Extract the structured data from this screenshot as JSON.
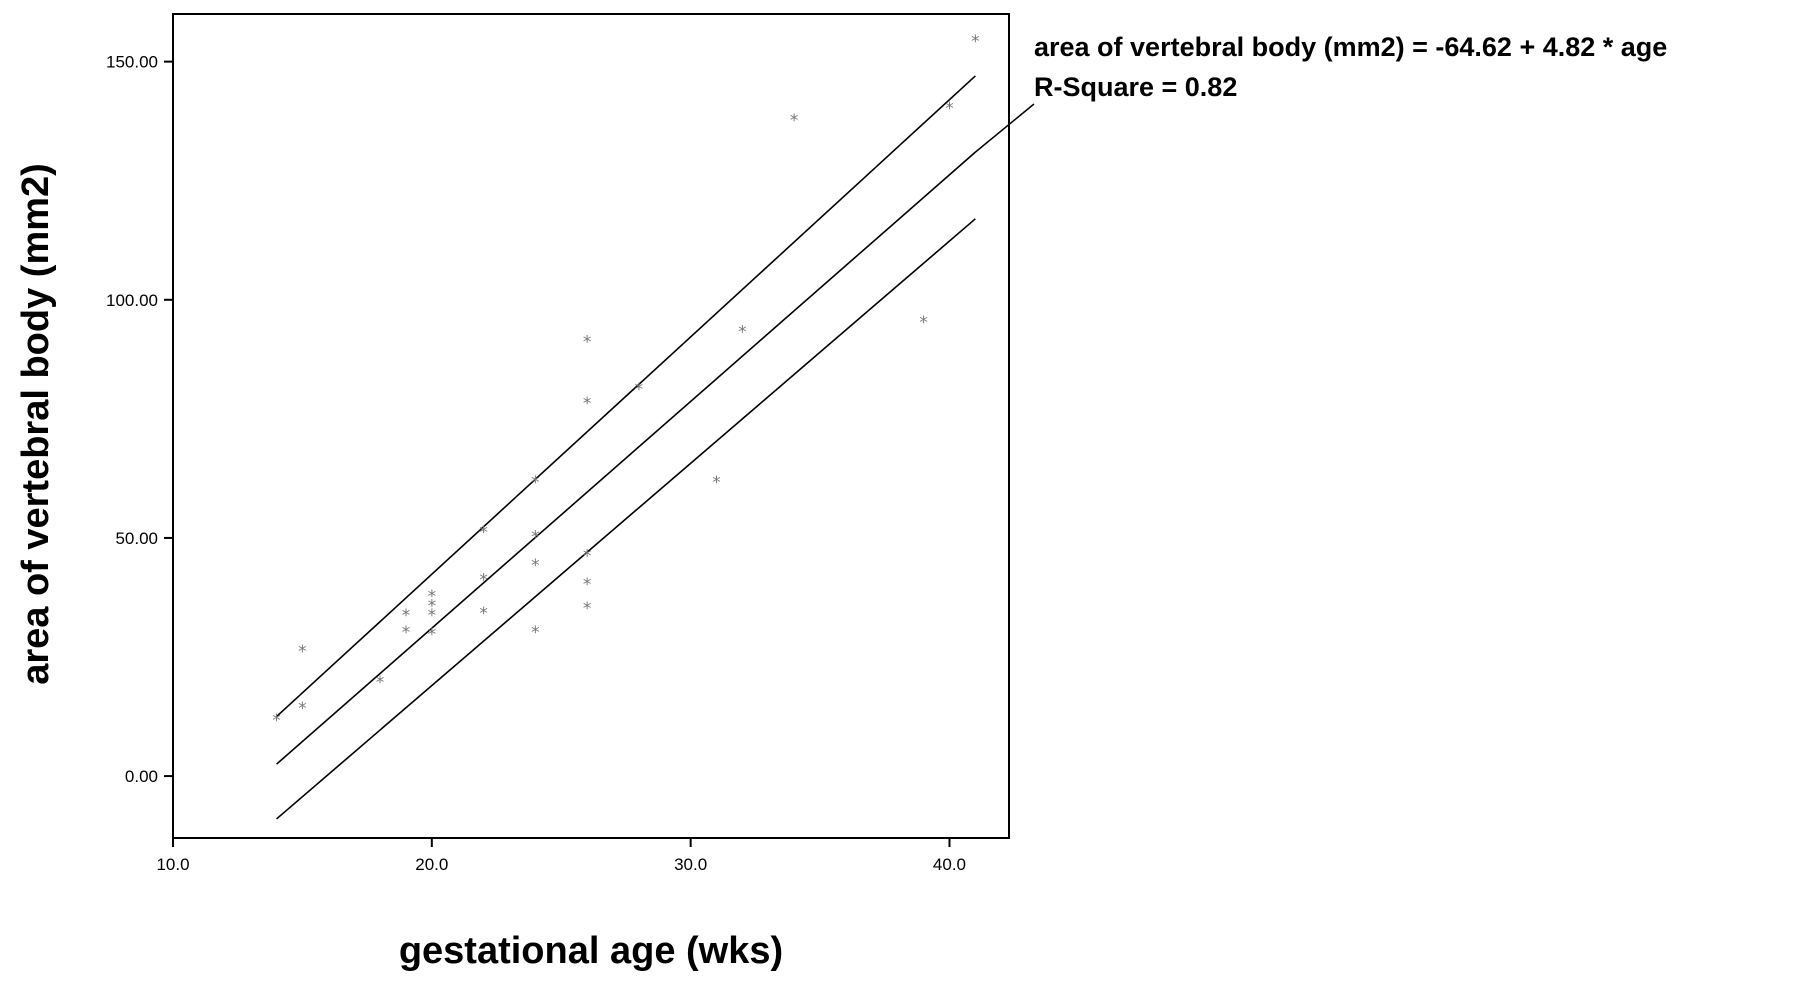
{
  "chart_data": {
    "type": "scatter",
    "xlabel": "gestational age (wks)",
    "ylabel": "area of vertebral body (mm2)",
    "xlim": [
      10,
      42.3
    ],
    "ylim": [
      -13,
      160
    ],
    "x_ticks": [
      10,
      20,
      30,
      40
    ],
    "x_tick_labels": [
      "10.0",
      "20.0",
      "30.0",
      "40.0"
    ],
    "y_ticks": [
      0,
      50,
      100,
      150
    ],
    "y_tick_labels": [
      "0.00",
      "50.00",
      "100.00",
      "150.00"
    ],
    "grid": false,
    "marker_symbol": "*",
    "points": [
      {
        "x": 14,
        "y": 12
      },
      {
        "x": 15,
        "y": 26.5
      },
      {
        "x": 15,
        "y": 14.5
      },
      {
        "x": 18,
        "y": 20
      },
      {
        "x": 19,
        "y": 34
      },
      {
        "x": 19,
        "y": 30.5
      },
      {
        "x": 20,
        "y": 38
      },
      {
        "x": 20,
        "y": 36
      },
      {
        "x": 20,
        "y": 34
      },
      {
        "x": 20,
        "y": 30
      },
      {
        "x": 22,
        "y": 51.5
      },
      {
        "x": 22,
        "y": 41.5
      },
      {
        "x": 22,
        "y": 34.5
      },
      {
        "x": 24,
        "y": 62
      },
      {
        "x": 24,
        "y": 50.5
      },
      {
        "x": 24,
        "y": 44.5
      },
      {
        "x": 24,
        "y": 30.5
      },
      {
        "x": 26,
        "y": 91.5
      },
      {
        "x": 26,
        "y": 78.5
      },
      {
        "x": 26,
        "y": 46.5
      },
      {
        "x": 26,
        "y": 40.5
      },
      {
        "x": 26,
        "y": 35.5
      },
      {
        "x": 28,
        "y": 81.5
      },
      {
        "x": 31,
        "y": 62
      },
      {
        "x": 32,
        "y": 93.5
      },
      {
        "x": 34,
        "y": 138
      },
      {
        "x": 39,
        "y": 95.5
      },
      {
        "x": 40,
        "y": 140.5
      },
      {
        "x": 41,
        "y": 154.5
      }
    ],
    "lines": [
      {
        "role": "upper",
        "x": [
          14,
          41
        ],
        "y": [
          12.5,
          147
        ]
      },
      {
        "role": "fit",
        "x": [
          14,
          41
        ],
        "y": [
          2.5,
          131
        ]
      },
      {
        "role": "lower",
        "x": [
          14,
          41
        ],
        "y": [
          -9,
          117
        ]
      }
    ],
    "annotation": {
      "lines": [
        "area of vertebral body (mm2) = -64.62 + 4.82 * age",
        "R-Square = 0.82"
      ],
      "leader_from": {
        "x": 41,
        "y": 131
      }
    }
  }
}
